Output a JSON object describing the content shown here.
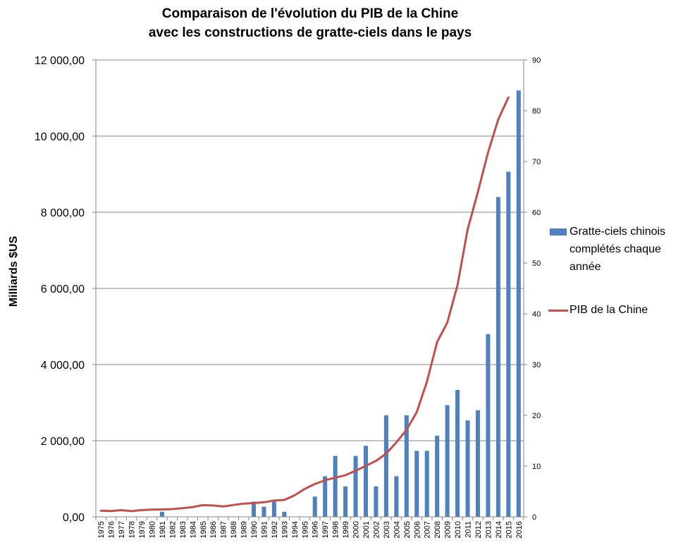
{
  "chart_data": {
    "type": "bar+line",
    "title_lines": [
      "Comparaison de l'évolution du PIB de la Chine",
      "avec les constructions de gratte-ciels dans le pays"
    ],
    "ylabel_left": "Milliards $US",
    "ylabel_right": "",
    "xlabel": "",
    "categories": [
      "1975",
      "1976",
      "1977",
      "1978",
      "1979",
      "1980",
      "1981",
      "1982",
      "1983",
      "1984",
      "1985",
      "1986",
      "1987",
      "1988",
      "1989",
      "1990",
      "1991",
      "1992",
      "1993",
      "1994",
      "1995",
      "1996",
      "1997",
      "1998",
      "1999",
      "2000",
      "2001",
      "2002",
      "2003",
      "2004",
      "2005",
      "2006",
      "2007",
      "2008",
      "2009",
      "2010",
      "2011",
      "2012",
      "2013",
      "2014",
      "2015",
      "2016"
    ],
    "y_left": {
      "min": 0,
      "max": 12000,
      "step": 2000,
      "tick_labels": [
        "0,00",
        "2 000,00",
        "4 000,00",
        "6 000,00",
        "8 000,00",
        "10 000,00",
        "12 000,00"
      ]
    },
    "y_right": {
      "min": 0,
      "max": 90,
      "step": 10,
      "tick_labels": [
        "0",
        "10",
        "20",
        "30",
        "40",
        "50",
        "60",
        "70",
        "80",
        "90"
      ]
    },
    "grid": "horizontal",
    "legend_position": "right",
    "series": [
      {
        "name": "Gratte-ciels chinois complétés chaque année",
        "type": "bar",
        "axis": "right",
        "color": "#4f81bd",
        "values": [
          0,
          0,
          0,
          0,
          0,
          0,
          1,
          0,
          0,
          0,
          0,
          0,
          0,
          0,
          0,
          3,
          2,
          3,
          1,
          0,
          0,
          4,
          8,
          12,
          6,
          12,
          14,
          6,
          20,
          8,
          20,
          13,
          13,
          16,
          22,
          25,
          19,
          21,
          36,
          63,
          68,
          84
        ]
      },
      {
        "name": "PIB de la Chine",
        "type": "line",
        "axis": "left",
        "color": "#c0504d",
        "values": [
          163,
          153,
          175,
          150,
          178,
          191,
          195,
          203,
          228,
          257,
          307,
          298,
          272,
          312,
          348,
          361,
          383,
          427,
          444,
          564,
          734,
          863,
          962,
          1029,
          1094,
          1211,
          1339,
          1471,
          1660,
          1955,
          2286,
          2752,
          3550,
          4594,
          5102,
          6087,
          7552,
          8532,
          9570,
          10439,
          11015,
          null
        ]
      }
    ]
  }
}
